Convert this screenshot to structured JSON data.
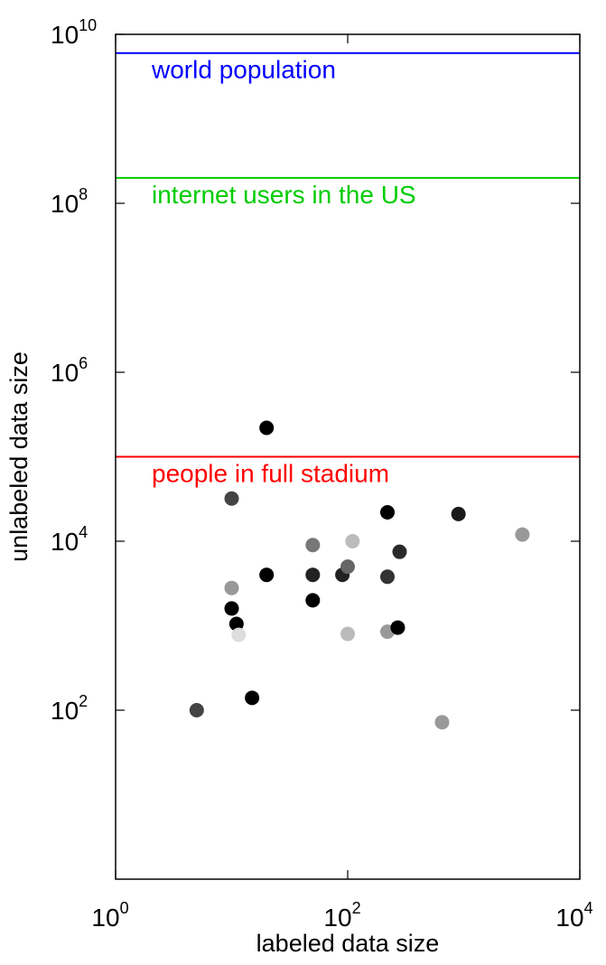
{
  "chart_data": {
    "type": "scatter",
    "title": "",
    "xlabel": "labeled data size",
    "ylabel": "unlabeled data size",
    "x_scale": "log",
    "y_scale": "log",
    "xlim": [
      1,
      10000
    ],
    "ylim": [
      1,
      10000000000
    ],
    "grid": false,
    "x_ticks": [
      {
        "base": "10",
        "exp": "0",
        "value": 1
      },
      {
        "base": "10",
        "exp": "2",
        "value": 100
      },
      {
        "base": "10",
        "exp": "4",
        "value": 10000
      }
    ],
    "y_ticks": [
      {
        "base": "10",
        "exp": "2",
        "value": 100
      },
      {
        "base": "10",
        "exp": "4",
        "value": 10000
      },
      {
        "base": "10",
        "exp": "6",
        "value": 1000000
      },
      {
        "base": "10",
        "exp": "8",
        "value": 100000000
      },
      {
        "base": "10",
        "exp": "10",
        "value": 10000000000
      }
    ],
    "reference_lines": [
      {
        "label": "world population",
        "y": 6000000000,
        "color": "#0000ff"
      },
      {
        "label": "internet users in the US",
        "y": 200000000,
        "color": "#00cc00"
      },
      {
        "label": "people in full stadium",
        "y": 100000,
        "color": "#ff0000"
      }
    ],
    "points": [
      {
        "x": 20,
        "y": 220000,
        "color": "#000000"
      },
      {
        "x": 10,
        "y": 32000,
        "color": "#444444"
      },
      {
        "x": 220,
        "y": 22000,
        "color": "#000000"
      },
      {
        "x": 900,
        "y": 21000,
        "color": "#1a1a1a"
      },
      {
        "x": 3200,
        "y": 12000,
        "color": "#999999"
      },
      {
        "x": 50,
        "y": 9000,
        "color": "#777777"
      },
      {
        "x": 110,
        "y": 10000,
        "color": "#bbbbbb"
      },
      {
        "x": 280,
        "y": 7500,
        "color": "#2a2a2a"
      },
      {
        "x": 20,
        "y": 4000,
        "color": "#000000"
      },
      {
        "x": 50,
        "y": 4000,
        "color": "#222222"
      },
      {
        "x": 90,
        "y": 4000,
        "color": "#222222"
      },
      {
        "x": 100,
        "y": 5000,
        "color": "#666666"
      },
      {
        "x": 220,
        "y": 3800,
        "color": "#333333"
      },
      {
        "x": 10,
        "y": 2800,
        "color": "#999999"
      },
      {
        "x": 50,
        "y": 2000,
        "color": "#000000"
      },
      {
        "x": 10,
        "y": 1600,
        "color": "#000000"
      },
      {
        "x": 11,
        "y": 1050,
        "color": "#000000"
      },
      {
        "x": 11.5,
        "y": 780,
        "color": "#dddddd"
      },
      {
        "x": 100,
        "y": 800,
        "color": "#bbbbbb"
      },
      {
        "x": 220,
        "y": 850,
        "color": "#999999"
      },
      {
        "x": 270,
        "y": 950,
        "color": "#000000"
      },
      {
        "x": 15,
        "y": 140,
        "color": "#000000"
      },
      {
        "x": 5,
        "y": 100,
        "color": "#444444"
      },
      {
        "x": 650,
        "y": 72,
        "color": "#999999"
      }
    ]
  }
}
